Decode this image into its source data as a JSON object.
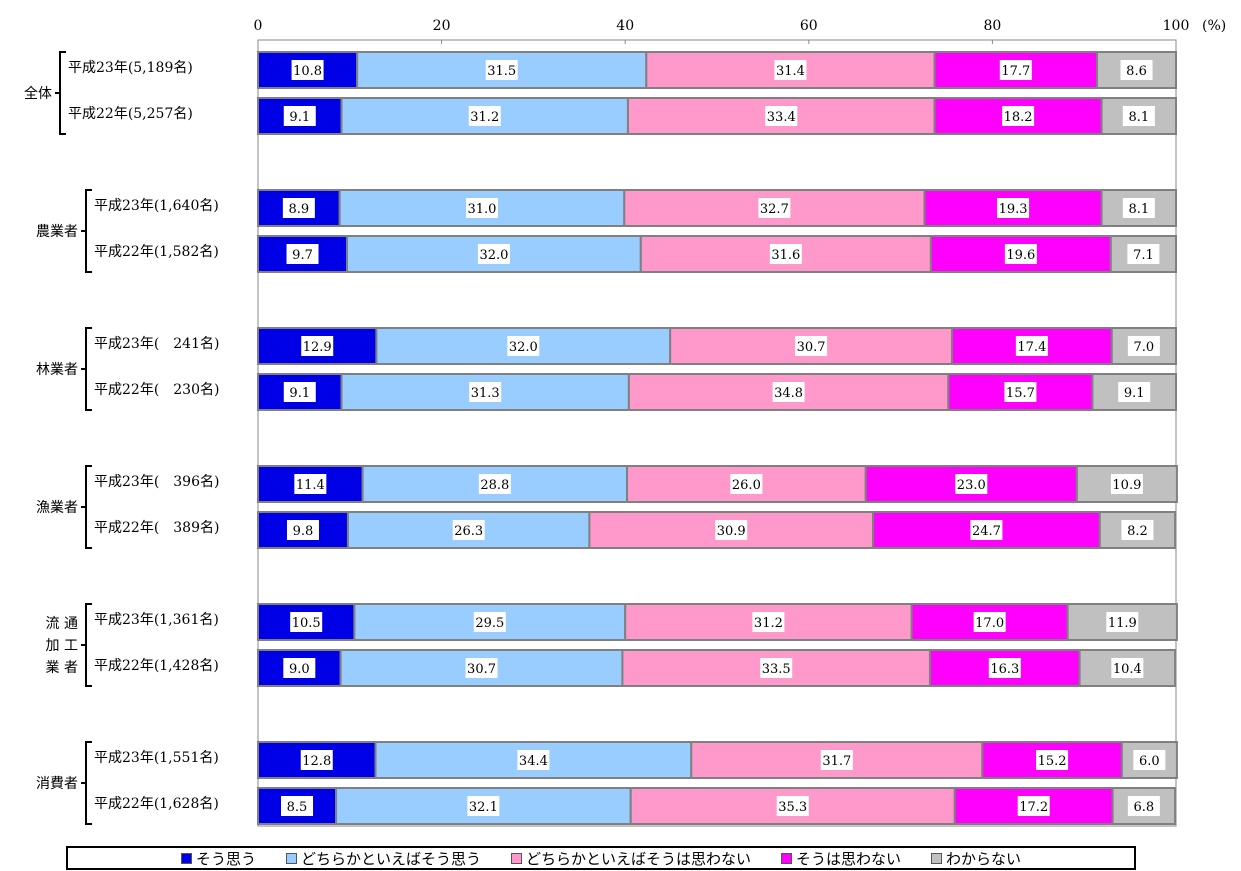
{
  "chart_data": {
    "type": "bar",
    "orientation": "horizontal-stacked-percent",
    "x_ticks": [
      "0",
      "20",
      "40",
      "60",
      "80",
      "100"
    ],
    "x_unit": "(%)",
    "xlim": [
      0,
      100
    ],
    "legend_position": "bottom",
    "series": [
      {
        "name": "そう思う",
        "color": "#0000e6"
      },
      {
        "name": "どちらかといえばそう思う",
        "color": "#99ccff"
      },
      {
        "name": "どちらかといえばそうは思わない",
        "color": "#ff99cc"
      },
      {
        "name": "そうは思わない",
        "color": "#ff00ff"
      },
      {
        "name": "わからない",
        "color": "#c0c0c0"
      }
    ],
    "groups": [
      {
        "label": "全体",
        "rows": [
          {
            "label": "平成23年(5,189名)",
            "values": [
              10.8,
              31.5,
              31.4,
              17.7,
              8.6
            ],
            "value_labels": [
              "10.8",
              "31.5",
              "31.4",
              "17.7",
              "8.6"
            ]
          },
          {
            "label": "平成22年(5,257名)",
            "values": [
              9.1,
              31.2,
              33.4,
              18.2,
              8.1
            ],
            "value_labels": [
              "9.1",
              "31.2",
              "33.4",
              "18.2",
              "8.1"
            ]
          }
        ]
      },
      {
        "label": "農業者",
        "rows": [
          {
            "label": "平成23年(1,640名)",
            "values": [
              8.9,
              31.0,
              32.7,
              19.3,
              8.1
            ],
            "value_labels": [
              "8.9",
              "31.0",
              "32.7",
              "19.3",
              "8.1"
            ]
          },
          {
            "label": "平成22年(1,582名)",
            "values": [
              9.7,
              32.0,
              31.6,
              19.6,
              7.1
            ],
            "value_labels": [
              "9.7",
              "32.0",
              "31.6",
              "19.6",
              "7.1"
            ]
          }
        ]
      },
      {
        "label": "林業者",
        "rows": [
          {
            "label": "平成23年(　241名)",
            "values": [
              12.9,
              32.0,
              30.7,
              17.4,
              7.0
            ],
            "value_labels": [
              "12.9",
              "32.0",
              "30.7",
              "17.4",
              "7.0"
            ]
          },
          {
            "label": "平成22年(　230名)",
            "values": [
              9.1,
              31.3,
              34.8,
              15.7,
              9.1
            ],
            "value_labels": [
              "9.1",
              "31.3",
              "34.8",
              "15.7",
              "9.1"
            ]
          }
        ]
      },
      {
        "label": "漁業者",
        "rows": [
          {
            "label": "平成23年(　396名)",
            "values": [
              11.4,
              28.8,
              26.0,
              23.0,
              10.9
            ],
            "value_labels": [
              "11.4",
              "28.8",
              "26.0",
              "23.0",
              "10.9"
            ]
          },
          {
            "label": "平成22年(　389名)",
            "values": [
              9.8,
              26.3,
              30.9,
              24.7,
              8.2
            ],
            "value_labels": [
              "9.8",
              "26.3",
              "30.9",
              "24.7",
              "8.2"
            ]
          }
        ]
      },
      {
        "label": "流通加工業者",
        "label_lines": [
          "流 通",
          "加 工",
          "業 者"
        ],
        "rows": [
          {
            "label": "平成23年(1,361名)",
            "values": [
              10.5,
              29.5,
              31.2,
              17.0,
              11.9
            ],
            "value_labels": [
              "10.5",
              "29.5",
              "31.2",
              "17.0",
              "11.9"
            ]
          },
          {
            "label": "平成22年(1,428名)",
            "values": [
              9.0,
              30.7,
              33.5,
              16.3,
              10.4
            ],
            "value_labels": [
              "9.0",
              "30.7",
              "33.5",
              "16.3",
              "10.4"
            ]
          }
        ]
      },
      {
        "label": "消費者",
        "rows": [
          {
            "label": "平成23年(1,551名)",
            "values": [
              12.8,
              34.4,
              31.7,
              15.2,
              6.0
            ],
            "value_labels": [
              "12.8",
              "34.4",
              "31.7",
              "15.2",
              "6.0"
            ]
          },
          {
            "label": "平成22年(1,628名)",
            "values": [
              8.5,
              32.1,
              35.3,
              17.2,
              6.8
            ],
            "value_labels": [
              "8.5",
              "32.1",
              "35.3",
              "17.2",
              "6.8"
            ]
          }
        ]
      }
    ]
  }
}
